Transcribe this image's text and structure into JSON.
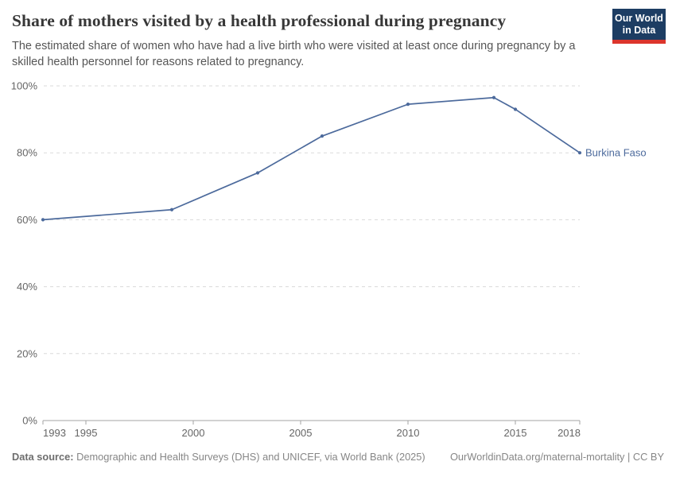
{
  "header": {
    "title": "Share of mothers visited by a health professional during pregnancy",
    "subtitle": "The estimated share of women who have had a live birth who were visited at least once during pregnancy by a skilled health personnel for reasons related to pregnancy."
  },
  "logo": {
    "line1": "Our World",
    "line2": "in Data",
    "background_color": "#1d3d63",
    "accent_color": "#dc352c"
  },
  "footer": {
    "source_label": "Data source:",
    "source_text": " Demographic and Health Surveys (DHS) and UNICEF, via World Bank (2025)",
    "attribution": "OurWorldinData.org/maternal-mortality | CC BY"
  },
  "colors": {
    "line": "#4c6a9c",
    "grid": "#dadada",
    "axis": "#a3a3a3",
    "tick_text": "#666666"
  },
  "chart_data": {
    "type": "line",
    "title": "Share of mothers visited by a health professional during pregnancy",
    "xlabel": "",
    "ylabel": "",
    "x_range": [
      1993,
      2018
    ],
    "y_range": [
      0,
      100
    ],
    "x_ticks": [
      1993,
      1995,
      2000,
      2005,
      2010,
      2015,
      2018
    ],
    "y_ticks": [
      0,
      20,
      40,
      60,
      80,
      100
    ],
    "y_tick_suffix": "%",
    "grid": true,
    "legend_position": "end-of-line label",
    "series": [
      {
        "name": "Burkina Faso",
        "color": "#4c6a9c",
        "points": [
          {
            "x": 1993,
            "y": 60
          },
          {
            "x": 1999,
            "y": 63
          },
          {
            "x": 2003,
            "y": 74
          },
          {
            "x": 2006,
            "y": 85
          },
          {
            "x": 2010,
            "y": 94.5
          },
          {
            "x": 2014,
            "y": 96.5
          },
          {
            "x": 2015,
            "y": 93
          },
          {
            "x": 2018,
            "y": 80
          }
        ]
      }
    ]
  }
}
